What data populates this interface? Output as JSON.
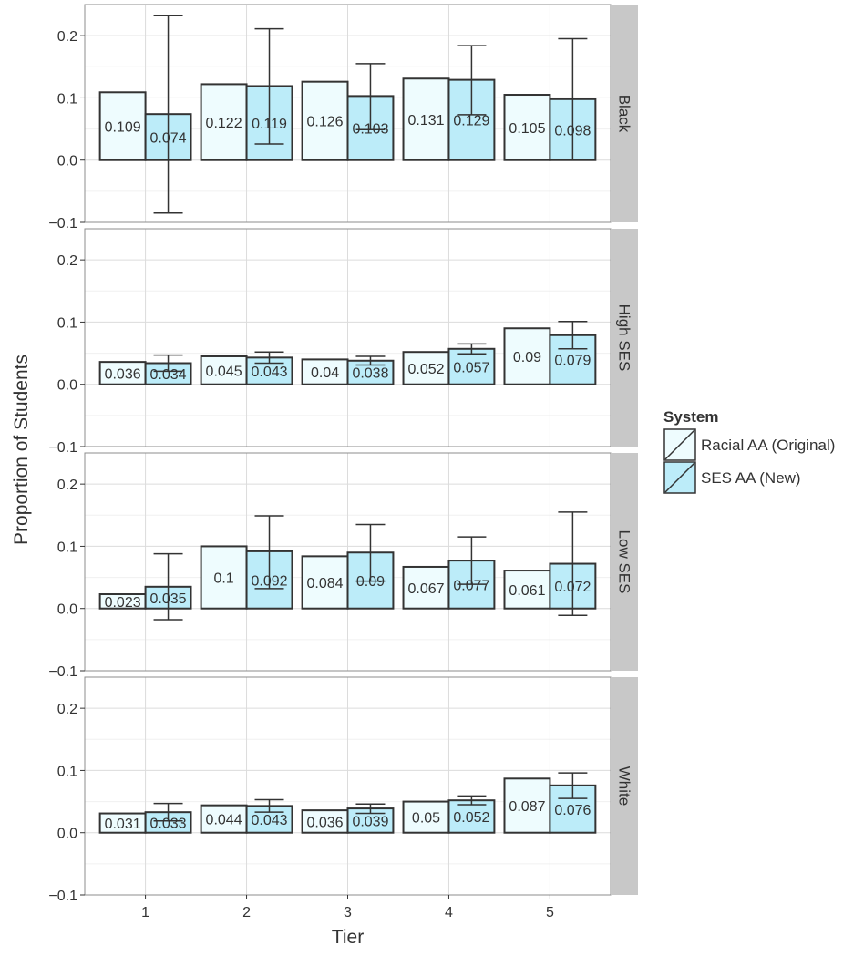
{
  "chart_data": {
    "type": "bar",
    "xlabel": "Tier",
    "ylabel": "Proportion of Students",
    "categories": [
      "1",
      "2",
      "3",
      "4",
      "5"
    ],
    "ylim": [
      -0.1,
      0.25
    ],
    "yticks": [
      "0.2",
      "0.1",
      "0.0",
      "−0.1"
    ],
    "ytick_values": [
      0.2,
      0.1,
      0.0,
      -0.1
    ],
    "grid": true,
    "legend": {
      "title": "System",
      "position": "right",
      "entries": [
        "Racial AA (Original)",
        "SES AA (New)"
      ]
    },
    "colors": {
      "racial": "#eefcfe",
      "ses": "#bcecf9",
      "panel_bg": "#ffffff",
      "grid_major": "#dcdcdc",
      "grid_minor": "#f0f0f0",
      "strip": "#c8c8c8",
      "bar_stroke": "#333333",
      "text": "#333333"
    },
    "panels": [
      {
        "name": "Black",
        "series": [
          {
            "name": "Racial AA (Original)",
            "values": [
              0.109,
              0.122,
              0.126,
              0.131,
              0.105
            ],
            "labels": [
              "0.109",
              "0.122",
              "0.126",
              "0.131",
              "0.105"
            ]
          },
          {
            "name": "SES AA (New)",
            "values": [
              0.074,
              0.119,
              0.103,
              0.129,
              0.098
            ],
            "labels": [
              "0.074",
              "0.119",
              "0.103",
              "0.129",
              "0.098"
            ],
            "error_bars": [
              [
                -0.085,
                0.232
              ],
              [
                0.026,
                0.211
              ],
              [
                0.049,
                0.155
              ],
              [
                0.073,
                0.184
              ],
              [
                0.0,
                0.195
              ]
            ]
          }
        ]
      },
      {
        "name": "High SES",
        "series": [
          {
            "name": "Racial AA (Original)",
            "values": [
              0.036,
              0.045,
              0.04,
              0.052,
              0.09
            ],
            "labels": [
              "0.036",
              "0.045",
              "0.04",
              "0.052",
              "0.09"
            ]
          },
          {
            "name": "SES AA (New)",
            "values": [
              0.034,
              0.043,
              0.038,
              0.057,
              0.079
            ],
            "labels": [
              "0.034",
              "0.043",
              "0.038",
              "0.057",
              "0.079"
            ],
            "error_bars": [
              [
                0.021,
                0.047
              ],
              [
                0.034,
                0.052
              ],
              [
                0.031,
                0.045
              ],
              [
                0.049,
                0.065
              ],
              [
                0.057,
                0.101
              ]
            ]
          }
        ]
      },
      {
        "name": "Low SES",
        "series": [
          {
            "name": "Racial AA (Original)",
            "values": [
              0.023,
              0.1,
              0.084,
              0.067,
              0.061
            ],
            "labels": [
              "0.023",
              "0.1",
              "0.084",
              "0.067",
              "0.061"
            ]
          },
          {
            "name": "SES AA (New)",
            "values": [
              0.035,
              0.092,
              0.09,
              0.077,
              0.072
            ],
            "labels": [
              "0.035",
              "0.092",
              "0.09",
              "0.077",
              "0.072"
            ],
            "error_bars": [
              [
                -0.018,
                0.088
              ],
              [
                0.032,
                0.149
              ],
              [
                0.044,
                0.135
              ],
              [
                0.039,
                0.115
              ],
              [
                -0.011,
                0.155
              ]
            ]
          }
        ]
      },
      {
        "name": "White",
        "series": [
          {
            "name": "Racial AA (Original)",
            "values": [
              0.031,
              0.044,
              0.036,
              0.05,
              0.087
            ],
            "labels": [
              "0.031",
              "0.044",
              "0.036",
              "0.05",
              "0.087"
            ]
          },
          {
            "name": "SES AA (New)",
            "values": [
              0.033,
              0.043,
              0.039,
              0.052,
              0.076
            ],
            "labels": [
              "0.033",
              "0.043",
              "0.039",
              "0.052",
              "0.076"
            ],
            "error_bars": [
              [
                0.019,
                0.047
              ],
              [
                0.033,
                0.053
              ],
              [
                0.031,
                0.046
              ],
              [
                0.045,
                0.059
              ],
              [
                0.055,
                0.096
              ]
            ]
          }
        ]
      }
    ]
  }
}
